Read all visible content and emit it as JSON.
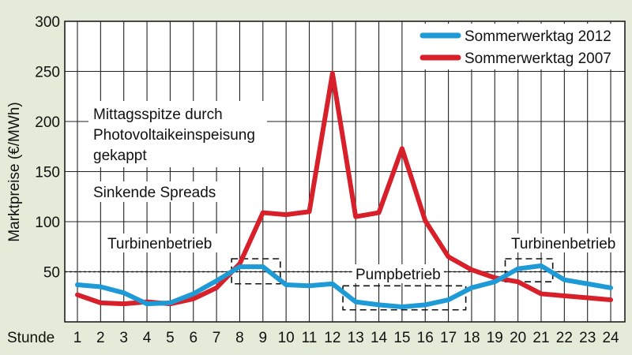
{
  "chart_data": {
    "type": "line",
    "xlabel": "Stunde",
    "ylabel": "Marktpreise (€/MWh)",
    "x": [
      1,
      2,
      3,
      4,
      5,
      6,
      7,
      8,
      9,
      10,
      11,
      12,
      13,
      14,
      15,
      16,
      17,
      18,
      19,
      20,
      21,
      22,
      23,
      24
    ],
    "ylim": [
      0,
      300
    ],
    "yticks": [
      50,
      100,
      150,
      200,
      250,
      300
    ],
    "grid": true,
    "legend_position": "top-right",
    "reference_line": 50,
    "series": [
      {
        "name": "Sommerwerktag 2012",
        "color": "#1e9ad6",
        "values": [
          37,
          35,
          29,
          18,
          19,
          28,
          41,
          55,
          55,
          37,
          36,
          38,
          20,
          17,
          15,
          17,
          22,
          34,
          40,
          53,
          56,
          42,
          38,
          34
        ]
      },
      {
        "name": "Sommerwerktag 2007",
        "color": "#d8202a",
        "values": [
          27,
          19,
          18,
          20,
          18,
          23,
          34,
          58,
          109,
          107,
          110,
          248,
          105,
          109,
          173,
          101,
          65,
          52,
          44,
          40,
          28,
          26,
          24,
          22
        ]
      }
    ],
    "annotations": [
      {
        "lines": [
          "Mittagsspitze durch",
          "Photovoltaikeinspeisung",
          "gekappt"
        ]
      },
      {
        "lines": [
          "Sinkende Spreads"
        ]
      },
      {
        "lines": [
          "Turbinenbetrieb"
        ]
      },
      {
        "lines": [
          "Pumpbetrieb"
        ]
      },
      {
        "lines": [
          "Turbinenbetrieb"
        ]
      }
    ],
    "highlight_boxes": [
      {
        "x": [
          7.65,
          9.75
        ],
        "y": [
          38,
          63
        ]
      },
      {
        "x": [
          12.45,
          17.75
        ],
        "y": [
          12,
          36
        ]
      },
      {
        "x": [
          19.45,
          21.5
        ],
        "y": [
          40,
          63
        ]
      }
    ]
  }
}
